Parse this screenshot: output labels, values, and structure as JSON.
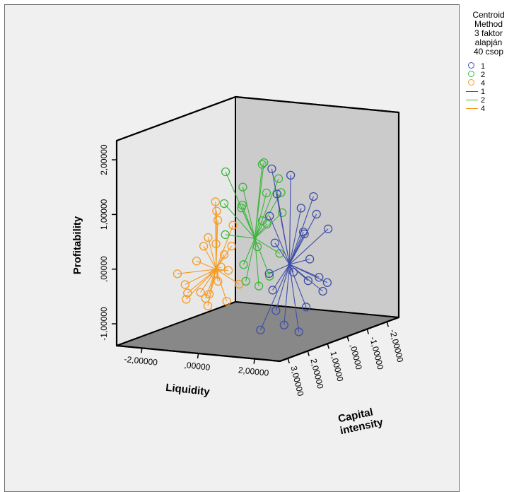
{
  "chart_data": {
    "type": "scatter",
    "subtype": "3d-scatter-with-centroid-spikes",
    "title": "",
    "axes": {
      "x": {
        "label": "Liquidity",
        "ticks": [
          "-2,00000",
          ",00000",
          "2,00000"
        ],
        "tick_values": [
          -2,
          0,
          2
        ],
        "range": [
          -2.9,
          2.9
        ]
      },
      "y": {
        "label": "Profitability",
        "ticks": [
          "-1,00000",
          ",00000",
          "1,00000",
          "2,00000"
        ],
        "tick_values": [
          -1,
          0,
          1,
          2
        ],
        "range": [
          -1.4,
          2.35
        ]
      },
      "z": {
        "label_lines": [
          "Capital",
          "intensity"
        ],
        "ticks": [
          "3,00000",
          "2,00000",
          "1,00000",
          ",00000",
          "-1,00000",
          "-2,00000"
        ],
        "tick_values": [
          3,
          2,
          1,
          0,
          -1,
          -2
        ],
        "range": [
          3.4,
          -2.6
        ]
      }
    },
    "legend": {
      "placement": "right",
      "title_lines": [
        "Centroid",
        "Method",
        "3 faktor",
        "alapján",
        "40 csop"
      ],
      "marker_entries": [
        {
          "label": "1",
          "color": "#3f4fa8"
        },
        {
          "label": "2",
          "color": "#3cb63c"
        },
        {
          "label": "4",
          "color": "#f59a23"
        }
      ],
      "line_entries": [
        {
          "label": "1",
          "color": "#3f4fa8"
        },
        {
          "label": "2",
          "color": "#3cb63c"
        },
        {
          "label": "4",
          "color": "#f59a23"
        }
      ]
    },
    "series": [
      {
        "name": "4",
        "color": "#f59a23",
        "centroid": {
          "x": -1.55,
          "y": -0.35,
          "z": 0.3
        },
        "points": [
          {
            "x": -2.3,
            "y": -0.6,
            "z": 0.8
          },
          {
            "x": -2.1,
            "y": -0.2,
            "z": 0.5
          },
          {
            "x": -1.9,
            "y": 0.2,
            "z": 0.2
          },
          {
            "x": -1.7,
            "y": 0.5,
            "z": 0.0
          },
          {
            "x": -2.4,
            "y": -0.9,
            "z": 0.6
          },
          {
            "x": -1.5,
            "y": -0.8,
            "z": 0.9
          },
          {
            "x": -1.2,
            "y": -0.5,
            "z": 0.7
          },
          {
            "x": -1.0,
            "y": 0.1,
            "z": 0.3
          },
          {
            "x": -1.3,
            "y": 0.4,
            "z": -0.2
          },
          {
            "x": -1.8,
            "y": -0.4,
            "z": -0.3
          },
          {
            "x": -2.0,
            "y": -0.7,
            "z": 1.1
          },
          {
            "x": -1.4,
            "y": -0.1,
            "z": 0.1
          },
          {
            "x": -1.1,
            "y": -0.9,
            "z": 0.4
          },
          {
            "x": -2.2,
            "y": 0.0,
            "z": 0.0
          },
          {
            "x": -1.6,
            "y": 0.7,
            "z": 0.2
          },
          {
            "x": -0.9,
            "y": -0.3,
            "z": 0.6
          },
          {
            "x": -2.5,
            "y": -0.4,
            "z": 0.9
          },
          {
            "x": -1.7,
            "y": -1.0,
            "z": 0.5
          },
          {
            "x": -1.2,
            "y": 0.2,
            "z": 0.8
          },
          {
            "x": -1.9,
            "y": -0.5,
            "z": -0.1
          },
          {
            "x": -0.8,
            "y": -0.6,
            "z": 0.2
          },
          {
            "x": -1.5,
            "y": 0.9,
            "z": 0.4
          },
          {
            "x": -2.1,
            "y": -0.8,
            "z": 0.3
          },
          {
            "x": -1.3,
            "y": -0.7,
            "z": 1.0
          }
        ]
      },
      {
        "name": "2",
        "color": "#3cb63c",
        "centroid": {
          "x": -0.1,
          "y": 0.3,
          "z": 0.4
        },
        "points": [
          {
            "x": -1.0,
            "y": 1.5,
            "z": 0.6
          },
          {
            "x": -0.6,
            "y": 1.2,
            "z": 0.3
          },
          {
            "x": -0.3,
            "y": 0.9,
            "z": 0.8
          },
          {
            "x": 0.1,
            "y": 1.1,
            "z": 0.1
          },
          {
            "x": 0.4,
            "y": 0.6,
            "z": 0.5
          },
          {
            "x": -0.2,
            "y": 1.6,
            "z": -0.2
          },
          {
            "x": -0.8,
            "y": 0.4,
            "z": 0.9
          },
          {
            "x": 0.2,
            "y": 0.2,
            "z": 0.7
          },
          {
            "x": 0.6,
            "y": 1.4,
            "z": 0.2
          },
          {
            "x": -0.5,
            "y": -0.2,
            "z": 0.4
          },
          {
            "x": 0.0,
            "y": -0.4,
            "z": 1.0
          },
          {
            "x": 0.5,
            "y": 0.0,
            "z": 0.0
          },
          {
            "x": -0.9,
            "y": 0.8,
            "z": -0.1
          },
          {
            "x": 0.3,
            "y": 1.7,
            "z": 0.6
          },
          {
            "x": 0.8,
            "y": 0.8,
            "z": 0.3
          },
          {
            "x": -0.4,
            "y": 0.5,
            "z": -0.4
          },
          {
            "x": 0.7,
            "y": -0.3,
            "z": 0.8
          },
          {
            "x": -0.7,
            "y": 1.0,
            "z": 1.1
          },
          {
            "x": 0.9,
            "y": 1.2,
            "z": 0.5
          },
          {
            "x": -0.1,
            "y": -0.6,
            "z": 0.2
          }
        ]
      },
      {
        "name": "1",
        "color": "#3f4fa8",
        "centroid": {
          "x": 1.2,
          "y": -0.1,
          "z": 0.5
        },
        "points": [
          {
            "x": 0.5,
            "y": 1.6,
            "z": 0.4
          },
          {
            "x": 0.9,
            "y": 1.2,
            "z": 0.7
          },
          {
            "x": 1.4,
            "y": 0.9,
            "z": 0.2
          },
          {
            "x": 1.8,
            "y": 0.5,
            "z": 0.6
          },
          {
            "x": 2.2,
            "y": 0.1,
            "z": 0.9
          },
          {
            "x": 2.4,
            "y": -0.4,
            "z": 0.3
          },
          {
            "x": 2.0,
            "y": -0.8,
            "z": 0.8
          },
          {
            "x": 1.5,
            "y": -1.1,
            "z": 1.2
          },
          {
            "x": 1.0,
            "y": -0.9,
            "z": 0.9
          },
          {
            "x": 0.6,
            "y": -0.6,
            "z": 0.5
          },
          {
            "x": 0.4,
            "y": 0.2,
            "z": 0.1
          },
          {
            "x": 1.2,
            "y": 0.4,
            "z": -0.2
          },
          {
            "x": 1.7,
            "y": 1.1,
            "z": 0.0
          },
          {
            "x": 2.5,
            "y": 0.6,
            "z": 0.4
          },
          {
            "x": 2.6,
            "y": -0.2,
            "z": 1.0
          },
          {
            "x": 0.8,
            "y": -1.2,
            "z": 1.4
          },
          {
            "x": 1.3,
            "y": -0.5,
            "z": -0.3
          },
          {
            "x": 1.9,
            "y": -0.1,
            "z": 1.3
          },
          {
            "x": 0.7,
            "y": 0.8,
            "z": 0.8
          },
          {
            "x": 1.1,
            "y": 1.5,
            "z": 0.3
          },
          {
            "x": 2.3,
            "y": 0.9,
            "z": 0.7
          },
          {
            "x": 1.6,
            "y": -1.3,
            "z": 0.6
          },
          {
            "x": 0.9,
            "y": -0.2,
            "z": 1.1
          },
          {
            "x": 2.1,
            "y": -0.6,
            "z": 0.1
          }
        ]
      }
    ]
  }
}
